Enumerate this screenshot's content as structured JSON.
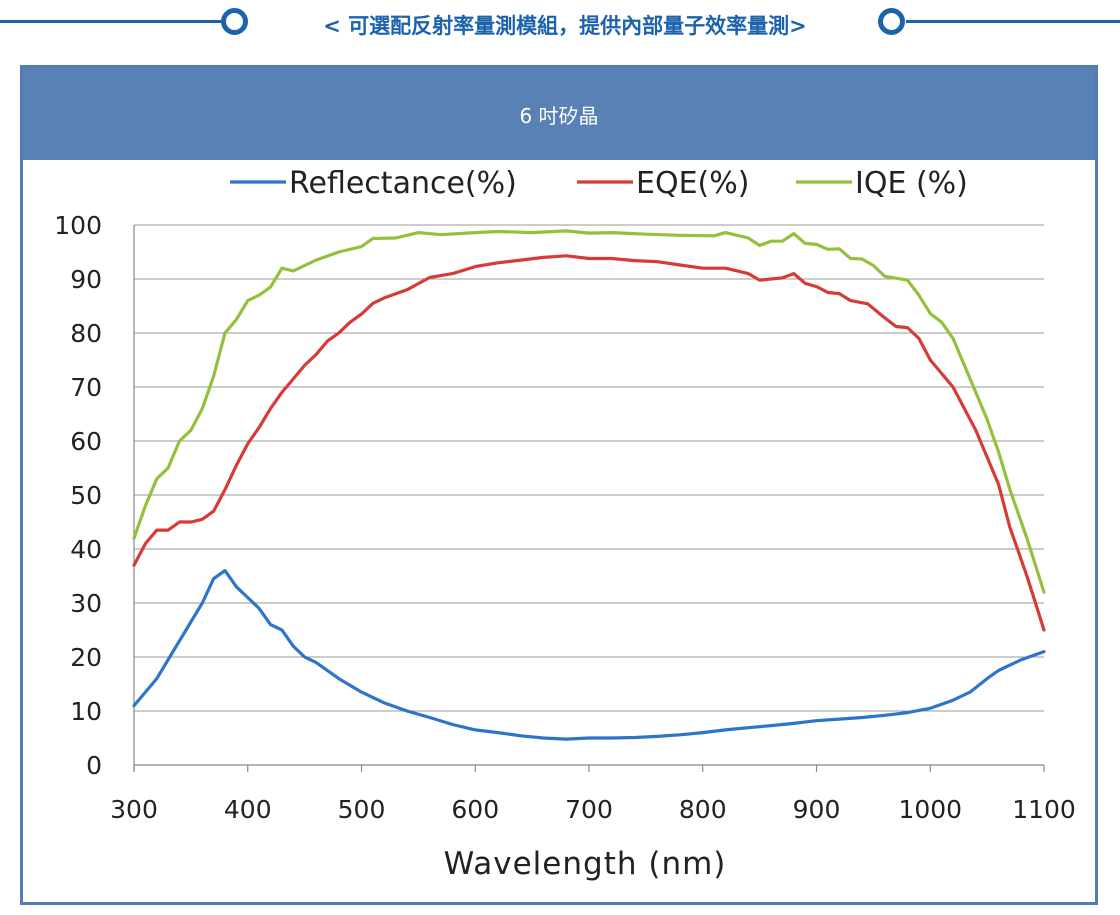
{
  "banner": {
    "title": "< 可選配反射率量測模組，提供內部量子效率量測>",
    "line_color": "#1d63ac"
  },
  "panel": {
    "header": "6 吋矽晶",
    "header_color": "#5a81b5",
    "border_color": "#4f7db4"
  },
  "chart_data": {
    "type": "line",
    "title": "",
    "xlabel": "Wavelength (nm)",
    "ylabel": "",
    "xlim": [
      300,
      1100
    ],
    "ylim": [
      0,
      100
    ],
    "xticks": [
      "300",
      "400",
      "500",
      "600",
      "700",
      "800",
      "900",
      "1000",
      "1100"
    ],
    "yticks": [
      "0",
      "10",
      "20",
      "30",
      "40",
      "50",
      "60",
      "70",
      "80",
      "90",
      "100"
    ],
    "grid": "horizontal",
    "legend_position": "top",
    "series": [
      {
        "name": "Reflectance(%)",
        "color": "#2e75c8",
        "points": [
          [
            300,
            11
          ],
          [
            320,
            16
          ],
          [
            340,
            23
          ],
          [
            360,
            30
          ],
          [
            370,
            34.5
          ],
          [
            380,
            36
          ],
          [
            390,
            33
          ],
          [
            400,
            31
          ],
          [
            410,
            29
          ],
          [
            420,
            26
          ],
          [
            430,
            25
          ],
          [
            440,
            22
          ],
          [
            450,
            20
          ],
          [
            460,
            19
          ],
          [
            480,
            16
          ],
          [
            500,
            13.5
          ],
          [
            520,
            11.5
          ],
          [
            540,
            10
          ],
          [
            560,
            8.8
          ],
          [
            580,
            7.5
          ],
          [
            600,
            6.5
          ],
          [
            620,
            6
          ],
          [
            640,
            5.4
          ],
          [
            660,
            5
          ],
          [
            680,
            4.8
          ],
          [
            700,
            5
          ],
          [
            720,
            5
          ],
          [
            740,
            5.1
          ],
          [
            760,
            5.3
          ],
          [
            780,
            5.6
          ],
          [
            800,
            6
          ],
          [
            820,
            6.5
          ],
          [
            840,
            6.9
          ],
          [
            860,
            7.3
          ],
          [
            880,
            7.7
          ],
          [
            900,
            8.2
          ],
          [
            920,
            8.5
          ],
          [
            940,
            8.8
          ],
          [
            960,
            9.2
          ],
          [
            980,
            9.7
          ],
          [
            1000,
            10.5
          ],
          [
            1020,
            12
          ],
          [
            1035,
            13.5
          ],
          [
            1050,
            16
          ],
          [
            1060,
            17.5
          ],
          [
            1080,
            19.5
          ],
          [
            1100,
            21
          ]
        ]
      },
      {
        "name": "EQE(%)",
        "color": "#d63b36",
        "points": [
          [
            300,
            37
          ],
          [
            310,
            41
          ],
          [
            320,
            43.5
          ],
          [
            330,
            43.5
          ],
          [
            340,
            45
          ],
          [
            350,
            45
          ],
          [
            360,
            45.5
          ],
          [
            370,
            47
          ],
          [
            380,
            51
          ],
          [
            390,
            55.5
          ],
          [
            400,
            59.5
          ],
          [
            410,
            62.5
          ],
          [
            420,
            66
          ],
          [
            430,
            69
          ],
          [
            440,
            71.5
          ],
          [
            450,
            74
          ],
          [
            460,
            76
          ],
          [
            470,
            78.5
          ],
          [
            480,
            80
          ],
          [
            490,
            82
          ],
          [
            500,
            83.5
          ],
          [
            510,
            85.5
          ],
          [
            520,
            86.5
          ],
          [
            540,
            88
          ],
          [
            560,
            90.3
          ],
          [
            580,
            91
          ],
          [
            600,
            92.3
          ],
          [
            620,
            93
          ],
          [
            640,
            93.5
          ],
          [
            660,
            94
          ],
          [
            680,
            94.3
          ],
          [
            700,
            93.8
          ],
          [
            720,
            93.8
          ],
          [
            740,
            93.4
          ],
          [
            760,
            93.2
          ],
          [
            780,
            92.6
          ],
          [
            800,
            92
          ],
          [
            820,
            92
          ],
          [
            840,
            91
          ],
          [
            850,
            89.8
          ],
          [
            870,
            90.2
          ],
          [
            880,
            91
          ],
          [
            890,
            89.2
          ],
          [
            900,
            88.6
          ],
          [
            910,
            87.5
          ],
          [
            920,
            87.3
          ],
          [
            930,
            86
          ],
          [
            945,
            85.4
          ],
          [
            960,
            82.8
          ],
          [
            970,
            81.2
          ],
          [
            980,
            81
          ],
          [
            990,
            79
          ],
          [
            1000,
            75
          ],
          [
            1020,
            70
          ],
          [
            1040,
            62
          ],
          [
            1060,
            52
          ],
          [
            1070,
            44
          ],
          [
            1085,
            35
          ],
          [
            1100,
            25
          ]
        ]
      },
      {
        "name": "IQE (%)",
        "color": "#93c13c",
        "points": [
          [
            300,
            42
          ],
          [
            310,
            48
          ],
          [
            320,
            53
          ],
          [
            330,
            55
          ],
          [
            340,
            60
          ],
          [
            350,
            62
          ],
          [
            360,
            66
          ],
          [
            370,
            72
          ],
          [
            380,
            80
          ],
          [
            390,
            82.5
          ],
          [
            400,
            86
          ],
          [
            410,
            87
          ],
          [
            420,
            88.5
          ],
          [
            430,
            92
          ],
          [
            440,
            91.5
          ],
          [
            460,
            93.5
          ],
          [
            480,
            95
          ],
          [
            500,
            96
          ],
          [
            510,
            97.5
          ],
          [
            530,
            97.6
          ],
          [
            550,
            98.6
          ],
          [
            570,
            98.2
          ],
          [
            600,
            98.6
          ],
          [
            620,
            98.8
          ],
          [
            650,
            98.6
          ],
          [
            680,
            98.9
          ],
          [
            700,
            98.5
          ],
          [
            720,
            98.6
          ],
          [
            750,
            98.3
          ],
          [
            780,
            98.1
          ],
          [
            810,
            98
          ],
          [
            820,
            98.6
          ],
          [
            840,
            97.6
          ],
          [
            850,
            96.2
          ],
          [
            860,
            97
          ],
          [
            870,
            97
          ],
          [
            880,
            98.4
          ],
          [
            890,
            96.6
          ],
          [
            900,
            96.4
          ],
          [
            910,
            95.5
          ],
          [
            920,
            95.6
          ],
          [
            930,
            93.8
          ],
          [
            940,
            93.7
          ],
          [
            950,
            92.5
          ],
          [
            960,
            90.5
          ],
          [
            980,
            89.8
          ],
          [
            990,
            87
          ],
          [
            1000,
            83.6
          ],
          [
            1010,
            82
          ],
          [
            1020,
            79
          ],
          [
            1030,
            74
          ],
          [
            1040,
            69
          ],
          [
            1050,
            64
          ],
          [
            1060,
            58
          ],
          [
            1070,
            51
          ],
          [
            1085,
            42
          ],
          [
            1100,
            32
          ]
        ]
      }
    ]
  }
}
